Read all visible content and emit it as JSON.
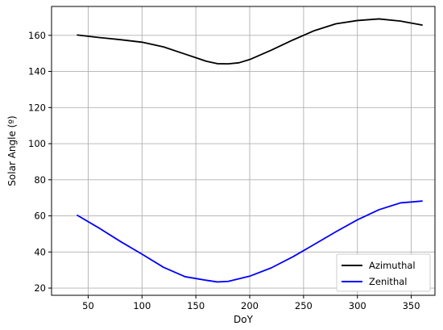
{
  "chart_data": {
    "type": "line",
    "xlabel": "DoY",
    "ylabel": "Solar Angle (º)",
    "xlim": [
      16,
      372
    ],
    "ylim": [
      16,
      176
    ],
    "xticks": [
      50,
      100,
      150,
      200,
      250,
      300,
      350
    ],
    "yticks": [
      20,
      40,
      60,
      80,
      100,
      120,
      140,
      160
    ],
    "grid": true,
    "legend_position": "lower-right",
    "series": [
      {
        "name": "Azimuthal",
        "color": "#000000",
        "x": [
          40,
          60,
          80,
          100,
          120,
          140,
          160,
          170,
          180,
          190,
          200,
          220,
          240,
          260,
          280,
          300,
          320,
          340,
          360
        ],
        "y": [
          160.2,
          158.8,
          157.6,
          156.2,
          153.6,
          149.6,
          145.6,
          144.3,
          144.2,
          144.8,
          146.6,
          151.8,
          157.4,
          162.6,
          166.4,
          168.2,
          169.1,
          167.9,
          165.7
        ]
      },
      {
        "name": "Zenithal",
        "color": "#0000ff",
        "x": [
          40,
          60,
          80,
          100,
          120,
          140,
          160,
          170,
          180,
          200,
          220,
          240,
          260,
          280,
          300,
          320,
          340,
          360
        ],
        "y": [
          60.3,
          53.3,
          45.8,
          38.8,
          31.5,
          26.3,
          24.3,
          23.4,
          23.7,
          26.6,
          31.2,
          37.3,
          44.2,
          51.2,
          57.8,
          63.4,
          67.2,
          68.2
        ]
      }
    ]
  }
}
